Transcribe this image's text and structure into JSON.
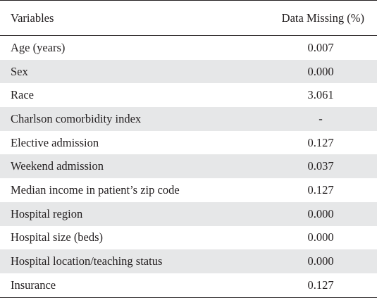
{
  "table": {
    "header": {
      "variables": "Variables",
      "data_missing": "Data Missing (%)"
    },
    "rows": [
      {
        "variable": "Age (years)",
        "missing": "0.007"
      },
      {
        "variable": "Sex",
        "missing": "0.000"
      },
      {
        "variable": "Race",
        "missing": "3.061"
      },
      {
        "variable": "Charlson comorbidity index",
        "missing": "-"
      },
      {
        "variable": "Elective admission",
        "missing": "0.127"
      },
      {
        "variable": "Weekend admission",
        "missing": "0.037"
      },
      {
        "variable": "Median income in patient’s zip code",
        "missing": "0.127"
      },
      {
        "variable": "Hospital region",
        "missing": "0.000"
      },
      {
        "variable": "Hospital size (beds)",
        "missing": "0.000"
      },
      {
        "variable": "Hospital location/teaching status",
        "missing": "0.000"
      },
      {
        "variable": "Insurance",
        "missing": "0.127"
      }
    ],
    "shade_color": "#e6e7e8"
  }
}
